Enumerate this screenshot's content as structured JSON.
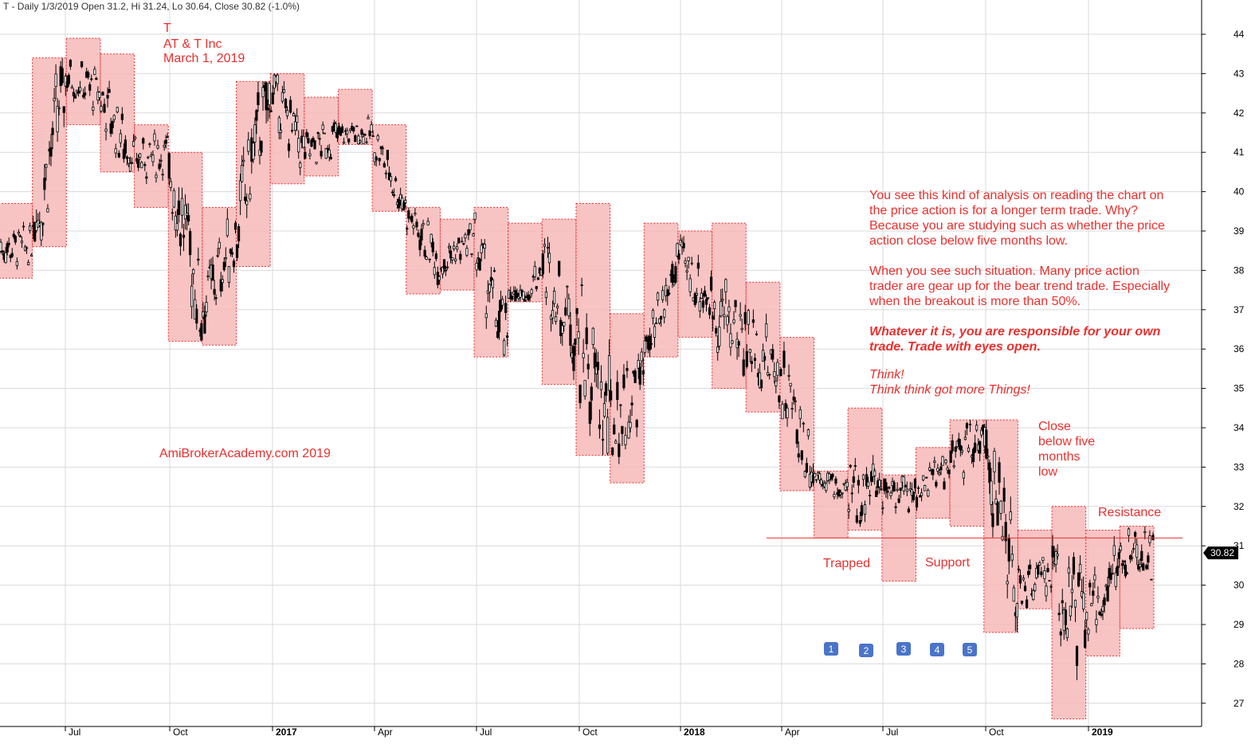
{
  "header": {
    "text": "T - Daily 1/3/2019 Open 31.2, Hi 31.24, Lo 30.64, Close 30.82 (-1.0%)"
  },
  "title_block": {
    "ticker": "T",
    "company": "AT & T Inc",
    "date": "March 1, 2019"
  },
  "watermark": "AmiBrokerAcademy.com  2019",
  "last_price": "30.82",
  "colors": {
    "annotation": "#e8302e",
    "box_fill": "#f7b8b8",
    "box_border": "#e8302e",
    "candle": "#000000",
    "grid": "#d9d9d9",
    "marker": "#4a74c9",
    "price_tag": "#000000"
  },
  "commentary": {
    "paragraph1": [
      "You see this kind of analysis on reading the chart on",
      "the price action is for a longer term trade. Why?",
      "Because you are studying such as whether the price",
      "action close below five months low."
    ],
    "paragraph2": [
      "When you see such situation. Many price action",
      "trader are gear up for the bear trend trade. Especially",
      "when the breakout is more than 50%."
    ],
    "paragraph3": [
      "Whatever it is, you are responsible for your own",
      "trade. Trade with eyes open."
    ],
    "paragraph4": [
      "Think!",
      "Think think got more Things!"
    ]
  },
  "labels": {
    "close_below": [
      "Close",
      "below five",
      "months",
      "low"
    ],
    "resistance": "Resistance",
    "trapped": "Trapped",
    "support": "Support"
  },
  "markers": [
    "1",
    "2",
    "3",
    "4",
    "5"
  ],
  "chart_data": {
    "type": "candlestick",
    "ylim": [
      26.3,
      45
    ],
    "y_ticks": [
      27,
      28,
      29,
      30,
      31,
      32,
      33,
      34,
      35,
      36,
      37,
      38,
      39,
      40,
      41,
      42,
      43,
      44
    ],
    "x_ticks": [
      {
        "label": "Jul",
        "year": false
      },
      {
        "label": "Oct",
        "year": false
      },
      {
        "label": "2017",
        "year": true
      },
      {
        "label": "Apr",
        "year": false
      },
      {
        "label": "Jul",
        "year": false
      },
      {
        "label": "Oct",
        "year": false
      },
      {
        "label": "2018",
        "year": true
      },
      {
        "label": "Apr",
        "year": false
      },
      {
        "label": "Jul",
        "year": false
      },
      {
        "label": "Oct",
        "year": false
      },
      {
        "label": "2019",
        "year": true
      }
    ],
    "resistance_level": 31.2,
    "monthly_ranges": [
      {
        "low": 37.8,
        "high": 39.7
      },
      {
        "low": 38.6,
        "high": 43.4
      },
      {
        "low": 41.7,
        "high": 43.9
      },
      {
        "low": 40.5,
        "high": 43.5
      },
      {
        "low": 39.6,
        "high": 41.7
      },
      {
        "low": 36.2,
        "high": 41.0
      },
      {
        "low": 36.1,
        "high": 39.6
      },
      {
        "low": 38.1,
        "high": 42.8
      },
      {
        "low": 40.2,
        "high": 43.0
      },
      {
        "low": 40.4,
        "high": 42.4
      },
      {
        "low": 41.2,
        "high": 42.6
      },
      {
        "low": 39.5,
        "high": 41.7
      },
      {
        "low": 37.4,
        "high": 39.6
      },
      {
        "low": 37.5,
        "high": 39.3
      },
      {
        "low": 35.8,
        "high": 39.6
      },
      {
        "low": 37.2,
        "high": 39.2
      },
      {
        "low": 35.1,
        "high": 39.3
      },
      {
        "low": 33.3,
        "high": 39.7
      },
      {
        "low": 32.6,
        "high": 36.9
      },
      {
        "low": 35.8,
        "high": 39.2
      },
      {
        "low": 36.3,
        "high": 39.0
      },
      {
        "low": 35.0,
        "high": 39.2
      },
      {
        "low": 34.4,
        "high": 37.7
      },
      {
        "low": 32.4,
        "high": 36.3
      },
      {
        "low": 31.2,
        "high": 32.9
      },
      {
        "low": 31.4,
        "high": 34.5
      },
      {
        "low": 30.1,
        "high": 32.8
      },
      {
        "low": 31.7,
        "high": 33.5
      },
      {
        "low": 31.5,
        "high": 34.2
      },
      {
        "low": 28.8,
        "high": 34.2
      },
      {
        "low": 29.4,
        "high": 31.4
      },
      {
        "low": 26.6,
        "high": 32.0
      },
      {
        "low": 28.2,
        "high": 31.4
      },
      {
        "low": 28.9,
        "high": 31.5
      }
    ],
    "monthly_closes": [
      38.6,
      43.0,
      42.5,
      40.8,
      41.0,
      37.0,
      38.9,
      42.8,
      41.0,
      41.4,
      41.5,
      39.6,
      38.2,
      38.8,
      36.0,
      38.2,
      36.5,
      34.0,
      35.2,
      38.3,
      37.2,
      36.3,
      35.4,
      33.0,
      32.3,
      32.6,
      32.4,
      33.0,
      34.0,
      29.8,
      30.3,
      29.0,
      30.6,
      30.82
    ]
  }
}
